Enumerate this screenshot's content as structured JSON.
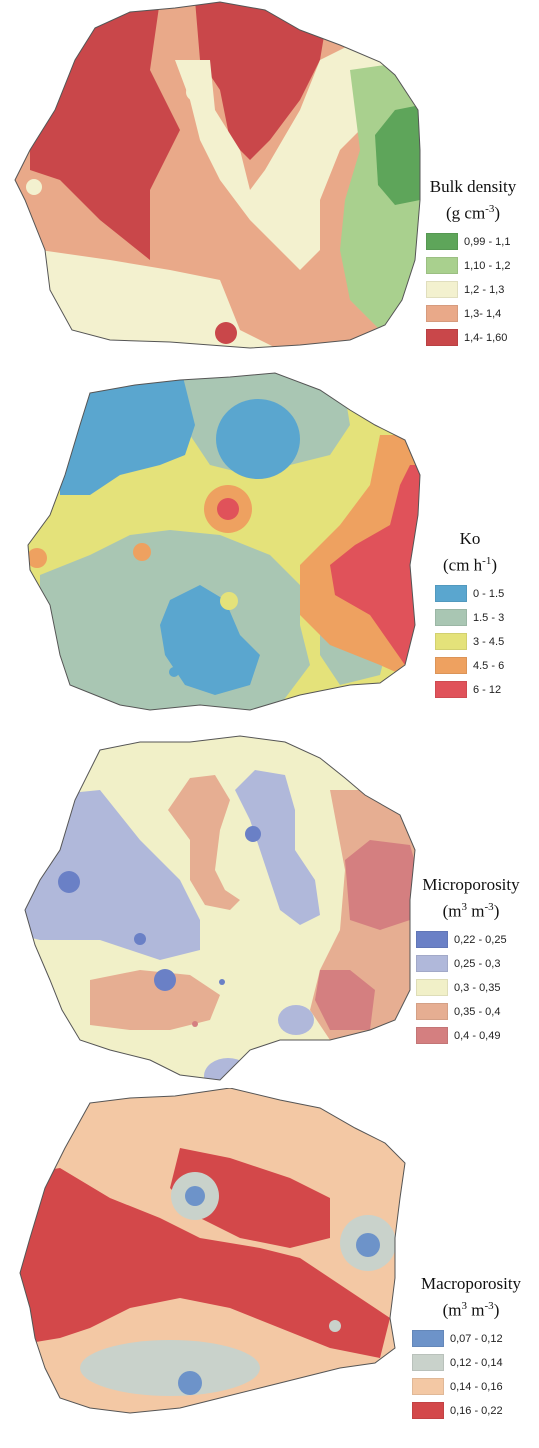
{
  "maps": [
    {
      "title": "Bulk density",
      "unit_base": "(g cm",
      "unit_exp": "-3",
      "unit_close": ")",
      "classes": [
        {
          "label": "0,99 - 1,1",
          "color": "#5ea55a"
        },
        {
          "label": "1,10 - 1,2",
          "color": "#a9d08e"
        },
        {
          "label": "1,2 - 1,3",
          "color": "#f3f1cf"
        },
        {
          "label": "1,3- 1,4",
          "color": "#e9a989"
        },
        {
          "label": "1,4- 1,60",
          "color": "#c9474a"
        }
      ]
    },
    {
      "title": "Ko",
      "unit_base": "(cm h",
      "unit_exp": "-1",
      "unit_close": ")",
      "classes": [
        {
          "label": "0 - 1.5",
          "color": "#5aa6cf"
        },
        {
          "label": "1.5 - 3",
          "color": "#a9c6b3"
        },
        {
          "label": "3 - 4.5",
          "color": "#e4e27a"
        },
        {
          "label": "4.5 - 6",
          "color": "#eea160"
        },
        {
          "label": "6 - 12",
          "color": "#e0525a"
        }
      ]
    },
    {
      "title": "Microporosity",
      "unit_base": "(m",
      "unit_exp": "3",
      "unit_mid": " m",
      "unit_exp2": "-3",
      "unit_close": ")",
      "classes": [
        {
          "label": "0,22 - 0,25",
          "color": "#6a80c6"
        },
        {
          "label": "0,25 - 0,3",
          "color": "#b0b8da"
        },
        {
          "label": "0,3 - 0,35",
          "color": "#f1f0c8"
        },
        {
          "label": "0,35 - 0,4",
          "color": "#e6ae92"
        },
        {
          "label": "0,4 - 0,49",
          "color": "#d47f80"
        }
      ]
    },
    {
      "title": "Macroporosity",
      "unit_base": "(m",
      "unit_exp": "3",
      "unit_mid": " m",
      "unit_exp2": "-3",
      "unit_close": ")",
      "classes": [
        {
          "label": "0,07 - 0,12",
          "color": "#6d93c9"
        },
        {
          "label": "0,12 - 0,14",
          "color": "#c9d2cb"
        },
        {
          "label": "0,14 - 0,16",
          "color": "#f3c8a4"
        },
        {
          "label": "0,16 - 0,22",
          "color": "#d3484a"
        }
      ]
    }
  ]
}
